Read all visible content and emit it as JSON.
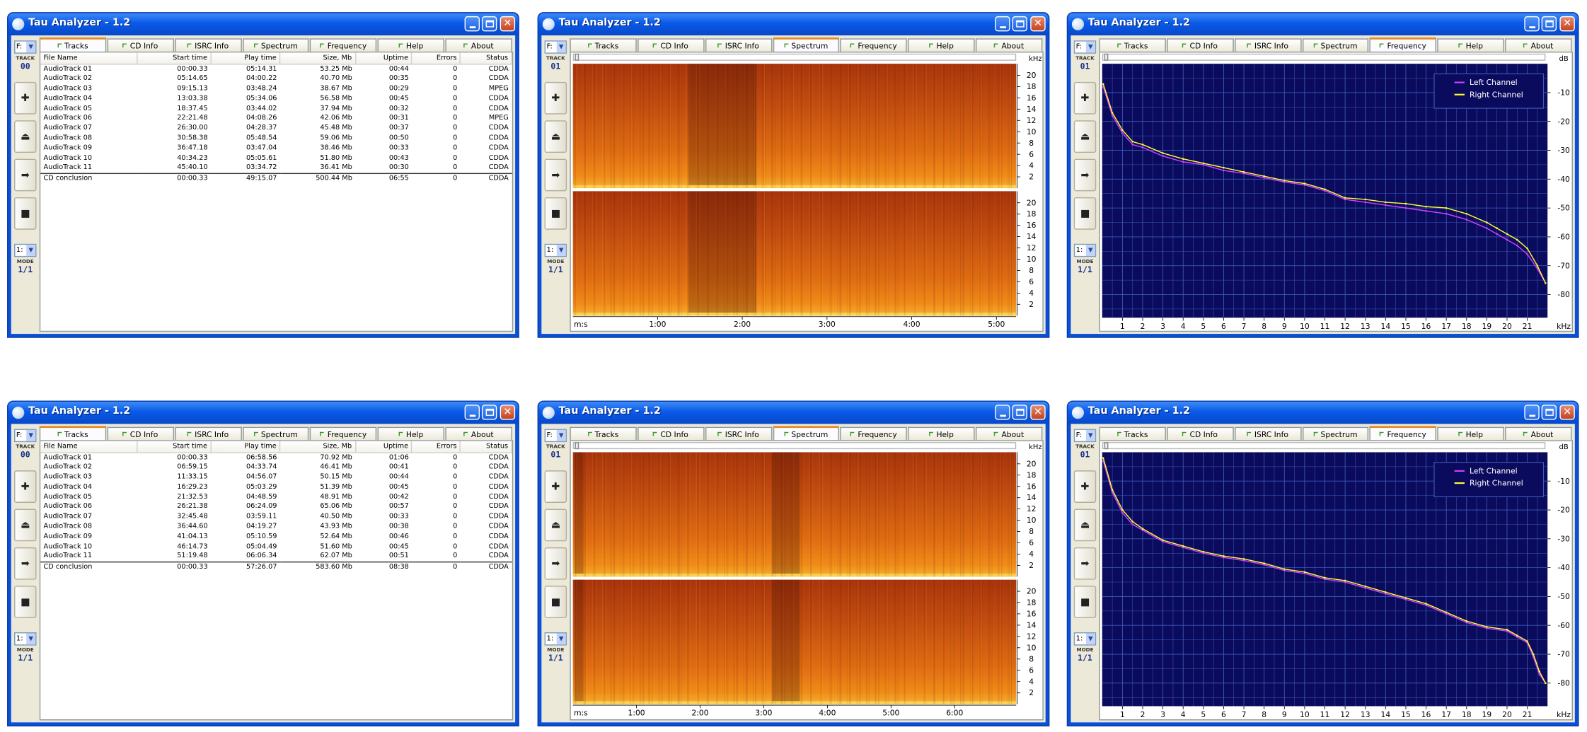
{
  "app": {
    "title": "Tau Analyzer - 1.2"
  },
  "common": {
    "drive_label": "F:",
    "track_label": "TRACK",
    "mode_label": "MODE",
    "mode_value": "1/1",
    "mode_drive": "1:",
    "tabs": [
      "Tracks",
      "CD Info",
      "ISRC Info",
      "Spectrum",
      "Frequency",
      "Help",
      "About"
    ]
  },
  "track_table": {
    "columns": [
      "File Name",
      "Start time",
      "Play time",
      "Size, Mb",
      "Uptime",
      "Errors",
      "Status"
    ]
  },
  "windows": [
    {
      "type": "tracks",
      "track_number": "00",
      "active_tab": "Tracks",
      "rows": [
        [
          "AudioTrack 01",
          "00:00.33",
          "05:14.31",
          "53.25 Mb",
          "00:44",
          "0",
          "CDDA"
        ],
        [
          "AudioTrack 02",
          "05:14.65",
          "04:00.22",
          "40.70 Mb",
          "00:35",
          "0",
          "CDDA"
        ],
        [
          "AudioTrack 03",
          "09:15.13",
          "03:48.24",
          "38.67 Mb",
          "00:29",
          "0",
          "MPEG"
        ],
        [
          "AudioTrack 04",
          "13:03.38",
          "05:34.06",
          "56.58 Mb",
          "00:45",
          "0",
          "CDDA"
        ],
        [
          "AudioTrack 05",
          "18:37.45",
          "03:44.02",
          "37.94 Mb",
          "00:32",
          "0",
          "CDDA"
        ],
        [
          "AudioTrack 06",
          "22:21.48",
          "04:08.26",
          "42.06 Mb",
          "00:31",
          "0",
          "MPEG"
        ],
        [
          "AudioTrack 07",
          "26:30.00",
          "04:28.37",
          "45.48 Mb",
          "00:37",
          "0",
          "CDDA"
        ],
        [
          "AudioTrack 08",
          "30:58.38",
          "05:48.54",
          "59.06 Mb",
          "00:50",
          "0",
          "CDDA"
        ],
        [
          "AudioTrack 09",
          "36:47.18",
          "03:47.04",
          "38.46 Mb",
          "00:33",
          "0",
          "CDDA"
        ],
        [
          "AudioTrack 10",
          "40:34.23",
          "05:05.61",
          "51.80 Mb",
          "00:43",
          "0",
          "CDDA"
        ],
        [
          "AudioTrack 11",
          "45:40.10",
          "03:34.72",
          "36.41 Mb",
          "00:30",
          "0",
          "CDDA"
        ]
      ],
      "conclusion": [
        "CD conclusion",
        "00:00.33",
        "49:15.07",
        "500.44 Mb",
        "06:55",
        "0",
        "CDDA"
      ]
    },
    {
      "type": "spectrum",
      "track_number": "01",
      "active_tab": "Spectrum",
      "unit": "kHz",
      "x_origin": "m:s",
      "x_ticks": [
        "1:00",
        "2:00",
        "3:00",
        "4:00",
        "5:00"
      ],
      "x_tick_seconds": [
        60,
        120,
        180,
        240,
        300
      ],
      "duration_seconds": 314,
      "y_ticks": [
        "20",
        "18",
        "16",
        "14",
        "12",
        "10",
        "8",
        "6",
        "4",
        "2"
      ],
      "y_tick_values": [
        20,
        18,
        16,
        14,
        12,
        10,
        8,
        6,
        4,
        2
      ],
      "y_max_khz": 22.05,
      "dark_bands_seconds": [
        [
          82,
          130
        ]
      ]
    },
    {
      "type": "frequency",
      "track_number": "01",
      "active_tab": "Frequency",
      "y_unit": "dB",
      "x_unit": "kHz",
      "x_ticks": [
        "1",
        "2",
        "3",
        "4",
        "5",
        "6",
        "7",
        "8",
        "9",
        "10",
        "11",
        "12",
        "13",
        "14",
        "15",
        "16",
        "17",
        "18",
        "19",
        "20",
        "21"
      ],
      "y_ticks": [
        "-10",
        "-20",
        "-30",
        "-40",
        "-50",
        "-60",
        "-70",
        "-80"
      ],
      "chart_data": {
        "type": "line",
        "xlabel": "kHz",
        "ylabel": "dB",
        "xlim": [
          0,
          22
        ],
        "ylim": [
          -88,
          0
        ],
        "grid": true,
        "legend": "top-right",
        "series": [
          {
            "name": "Left Channel",
            "color": "#d040ff",
            "x": [
              0.05,
              0.5,
              1,
              1.5,
              2,
              3,
              4,
              5,
              6,
              7,
              8,
              9,
              10,
              11,
              12,
              13,
              14,
              15,
              16,
              17,
              18,
              19,
              19.5,
              20,
              20.5,
              21,
              21.5,
              21.9
            ],
            "y": [
              -8,
              -18,
              -24,
              -28,
              -29,
              -32,
              -34,
              -35,
              -37,
              -38,
              -39.5,
              -41,
              -42,
              -44,
              -47,
              -48,
              -49,
              -50,
              -51,
              -52,
              -54,
              -57,
              -59,
              -61,
              -63,
              -66,
              -71,
              -76
            ]
          },
          {
            "name": "Right Channel",
            "color": "#ffff30",
            "x": [
              0.05,
              0.5,
              1,
              1.5,
              2,
              3,
              4,
              5,
              6,
              7,
              8,
              9,
              10,
              11,
              12,
              13,
              14,
              15,
              16,
              17,
              18,
              19,
              19.5,
              20,
              20.5,
              21,
              21.5,
              21.9
            ],
            "y": [
              -7,
              -17,
              -23,
              -27,
              -28,
              -31,
              -33,
              -34.5,
              -36,
              -37.5,
              -39,
              -40.5,
              -41.5,
              -43.5,
              -46.5,
              -47,
              -48,
              -48.5,
              -49.5,
              -50,
              -52,
              -55,
              -57,
              -59,
              -61,
              -64,
              -70,
              -76
            ]
          }
        ]
      }
    },
    {
      "type": "tracks",
      "track_number": "00",
      "active_tab": "Tracks",
      "rows": [
        [
          "AudioTrack 01",
          "00:00.33",
          "06:58.56",
          "70.92 Mb",
          "01:06",
          "0",
          "CDDA"
        ],
        [
          "AudioTrack 02",
          "06:59.15",
          "04:33.74",
          "46.41 Mb",
          "00:41",
          "0",
          "CDDA"
        ],
        [
          "AudioTrack 03",
          "11:33.15",
          "04:56.07",
          "50.15 Mb",
          "00:44",
          "0",
          "CDDA"
        ],
        [
          "AudioTrack 04",
          "16:29.23",
          "05:03.29",
          "51.39 Mb",
          "00:45",
          "0",
          "CDDA"
        ],
        [
          "AudioTrack 05",
          "21:32.53",
          "04:48.59",
          "48.91 Mb",
          "00:42",
          "0",
          "CDDA"
        ],
        [
          "AudioTrack 06",
          "26:21.38",
          "06:24.09",
          "65.06 Mb",
          "00:57",
          "0",
          "CDDA"
        ],
        [
          "AudioTrack 07",
          "32:45.48",
          "03:59.11",
          "40.50 Mb",
          "00:33",
          "0",
          "CDDA"
        ],
        [
          "AudioTrack 08",
          "36:44.60",
          "04:19.27",
          "43.93 Mb",
          "00:38",
          "0",
          "CDDA"
        ],
        [
          "AudioTrack 09",
          "41:04.13",
          "05:10.59",
          "52.64 Mb",
          "00:46",
          "0",
          "CDDA"
        ],
        [
          "AudioTrack 10",
          "46:14.73",
          "05:04.49",
          "51.60 Mb",
          "00:45",
          "0",
          "CDDA"
        ],
        [
          "AudioTrack 11",
          "51:19.48",
          "06:06.34",
          "62.07 Mb",
          "00:51",
          "0",
          "CDDA"
        ]
      ],
      "conclusion": [
        "CD conclusion",
        "00:00.33",
        "57:26.07",
        "583.60 Mb",
        "08:38",
        "0",
        "CDDA"
      ]
    },
    {
      "type": "spectrum",
      "track_number": "01",
      "active_tab": "Spectrum",
      "unit": "kHz",
      "x_origin": "m:s",
      "x_ticks": [
        "1:00",
        "2:00",
        "3:00",
        "4:00",
        "5:00",
        "6:00"
      ],
      "x_tick_seconds": [
        60,
        120,
        180,
        240,
        300,
        360
      ],
      "duration_seconds": 418,
      "y_ticks": [
        "20",
        "18",
        "16",
        "14",
        "12",
        "10",
        "8",
        "6",
        "4",
        "2"
      ],
      "y_tick_values": [
        20,
        18,
        16,
        14,
        12,
        10,
        8,
        6,
        4,
        2
      ],
      "y_max_khz": 22.05,
      "dark_bands_seconds": [
        [
          2,
          10
        ],
        [
          188,
          214
        ]
      ]
    },
    {
      "type": "frequency",
      "track_number": "01",
      "active_tab": "Frequency",
      "y_unit": "dB",
      "x_unit": "kHz",
      "x_ticks": [
        "1",
        "2",
        "3",
        "4",
        "5",
        "6",
        "7",
        "8",
        "9",
        "10",
        "11",
        "12",
        "13",
        "14",
        "15",
        "16",
        "17",
        "18",
        "19",
        "20",
        "21"
      ],
      "y_ticks": [
        "-10",
        "-20",
        "-30",
        "-40",
        "-50",
        "-60",
        "-70",
        "-80"
      ],
      "chart_data": {
        "type": "line",
        "xlabel": "kHz",
        "ylabel": "dB",
        "xlim": [
          0,
          22
        ],
        "ylim": [
          -88,
          0
        ],
        "grid": true,
        "legend": "top-right",
        "series": [
          {
            "name": "Left Channel",
            "color": "#d040ff",
            "x": [
              0.05,
              0.5,
              1,
              1.5,
              2,
              3,
              4,
              5,
              6,
              7,
              8,
              9,
              10,
              11,
              12,
              13,
              14,
              15,
              16,
              17,
              18,
              19,
              20,
              20.5,
              21,
              21.3,
              21.6,
              21.9
            ],
            "y": [
              -3,
              -14,
              -21,
              -25,
              -27,
              -31,
              -33,
              -35,
              -36.5,
              -37.5,
              -39,
              -41,
              -42,
              -44,
              -45,
              -47,
              -49,
              -51,
              -53,
              -56,
              -59,
              -61,
              -62,
              -64,
              -66,
              -71,
              -77,
              -80
            ]
          },
          {
            "name": "Right Channel",
            "color": "#ffff30",
            "x": [
              0.05,
              0.5,
              1,
              1.5,
              2,
              3,
              4,
              5,
              6,
              7,
              8,
              9,
              10,
              11,
              12,
              13,
              14,
              15,
              16,
              17,
              18,
              19,
              20,
              20.5,
              21,
              21.3,
              21.6,
              21.9
            ],
            "y": [
              -2,
              -13,
              -20,
              -24,
              -26.5,
              -30.5,
              -32.5,
              -34.5,
              -36,
              -37,
              -38.5,
              -40.5,
              -41.5,
              -43.5,
              -44.5,
              -46.5,
              -48.5,
              -50.5,
              -52.5,
              -55.5,
              -58.5,
              -60.5,
              -61.5,
              -63.5,
              -65.5,
              -70,
              -76,
              -80
            ]
          }
        ]
      }
    }
  ]
}
